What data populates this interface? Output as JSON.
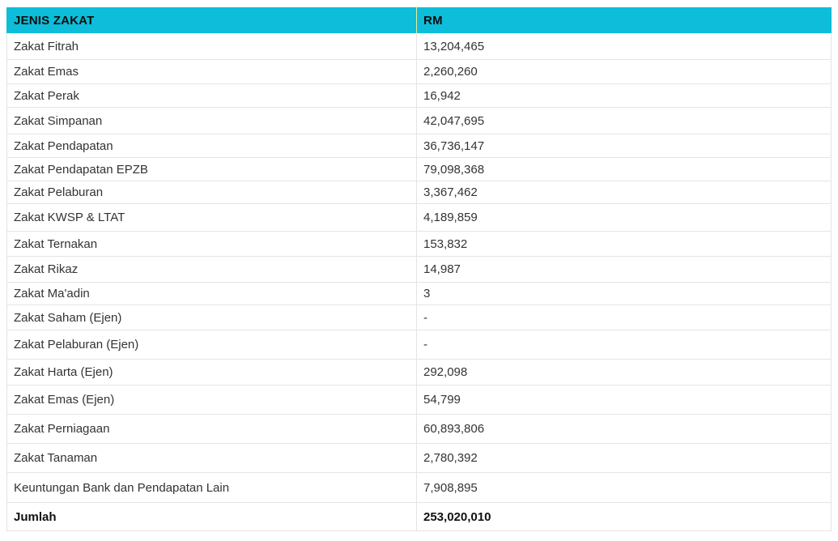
{
  "table": {
    "header": {
      "col_label": "JENIS ZAKAT",
      "col_value": "RM",
      "bg_color": "#0dbdd9"
    },
    "rows": [
      {
        "label": "Zakat Fitrah",
        "value": "13,204,465"
      },
      {
        "label": "Zakat Emas",
        "value": "2,260,260"
      },
      {
        "label": "Zakat Perak",
        "value": "16,942"
      },
      {
        "label": "Zakat Simpanan",
        "value": "42,047,695"
      },
      {
        "label": "Zakat Pendapatan",
        "value": "36,736,147"
      },
      {
        "label": "Zakat Pendapatan EPZB",
        "value": "79,098,368"
      },
      {
        "label": "Zakat Pelaburan",
        "value": "3,367,462"
      },
      {
        "label": "Zakat KWSP & LTAT",
        "value": "4,189,859"
      },
      {
        "label": "Zakat Ternakan",
        "value": "153,832"
      },
      {
        "label": "Zakat Rikaz",
        "value": "14,987"
      },
      {
        "label": "Zakat Ma'adin",
        "value": "3"
      },
      {
        "label": "Zakat Saham (Ejen)",
        "value": "-"
      },
      {
        "label": "Zakat Pelaburan (Ejen)",
        "value": "-"
      },
      {
        "label": "Zakat Harta (Ejen)",
        "value": "292,098"
      },
      {
        "label": "Zakat Emas (Ejen)",
        "value": "54,799"
      },
      {
        "label": "Zakat Perniagaan",
        "value": "60,893,806"
      },
      {
        "label": "Zakat Tanaman",
        "value": "2,780,392"
      },
      {
        "label": "Keuntungan Bank dan Pendapatan Lain",
        "value": "7,908,895"
      }
    ],
    "total": {
      "label": "Jumlah",
      "value": "253,020,010"
    }
  }
}
